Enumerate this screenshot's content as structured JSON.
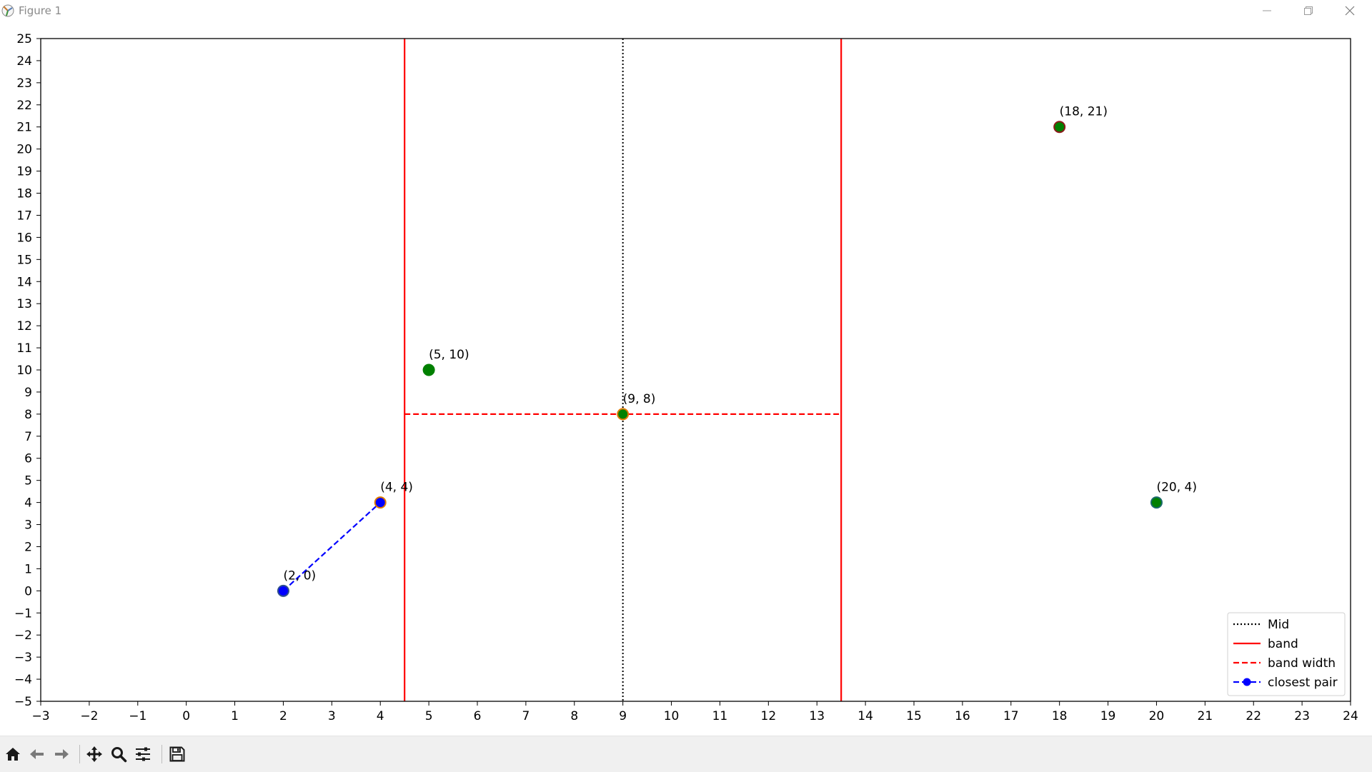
{
  "window": {
    "title": "Figure 1"
  },
  "toolbar": {
    "buttons": [
      "home-icon",
      "back-icon",
      "forward-icon",
      "pan-icon",
      "zoom-icon",
      "configure-icon",
      "save-icon"
    ]
  },
  "chart_data": {
    "type": "scatter",
    "title": "",
    "xlabel": "",
    "ylabel": "",
    "xlim": [
      -3,
      24
    ],
    "ylim": [
      -5,
      25
    ],
    "x_ticks": [
      -3,
      -2,
      -1,
      0,
      1,
      2,
      3,
      4,
      5,
      6,
      7,
      8,
      9,
      10,
      11,
      12,
      13,
      14,
      15,
      16,
      17,
      18,
      19,
      20,
      21,
      22,
      23,
      24
    ],
    "y_ticks": [
      -5,
      -4,
      -3,
      -2,
      -1,
      0,
      1,
      2,
      3,
      4,
      5,
      6,
      7,
      8,
      9,
      10,
      11,
      12,
      13,
      14,
      15,
      16,
      17,
      18,
      19,
      20,
      21,
      22,
      23,
      24,
      25
    ],
    "grid": false,
    "points": [
      {
        "x": 2,
        "y": 0,
        "label": "(2, 0)",
        "fill": "#0000ff",
        "edge": "#2f4f8f"
      },
      {
        "x": 4,
        "y": 4,
        "label": "(4, 4)",
        "fill": "#0000ff",
        "edge": "#e07b00"
      },
      {
        "x": 5,
        "y": 10,
        "label": "(5, 10)",
        "fill": "#008000",
        "edge": "#008000"
      },
      {
        "x": 9,
        "y": 8,
        "label": "(9, 8)",
        "fill": "#008000",
        "edge": "#e07b00"
      },
      {
        "x": 18,
        "y": 21,
        "label": "(18, 21)",
        "fill": "#008000",
        "edge": "#8b1a1a"
      },
      {
        "x": 20,
        "y": 4,
        "label": "(20, 4)",
        "fill": "#008000",
        "edge": "#1a6a6a"
      }
    ],
    "lines": {
      "mid": {
        "x": 9,
        "color": "#000000",
        "style": "dotted"
      },
      "band": {
        "x": [
          4.5,
          13.5
        ],
        "color": "#ff0000",
        "style": "solid"
      },
      "band_width": {
        "x": [
          4.5,
          13.5
        ],
        "y": 8,
        "color": "#ff0000",
        "style": "dashed"
      },
      "closest_pair": {
        "x": [
          2,
          4
        ],
        "y": [
          0,
          4
        ],
        "color": "#0000ff",
        "style": "dashed"
      }
    },
    "legend": {
      "placement": "bottom-right",
      "entries": [
        {
          "label": "Mid",
          "color": "#000000",
          "style": "dotted",
          "marker": false
        },
        {
          "label": "band",
          "color": "#ff0000",
          "style": "solid",
          "marker": false
        },
        {
          "label": "band width",
          "color": "#ff0000",
          "style": "dashed",
          "marker": false
        },
        {
          "label": "closest pair",
          "color": "#0000ff",
          "style": "dashed",
          "marker": true
        }
      ]
    }
  }
}
